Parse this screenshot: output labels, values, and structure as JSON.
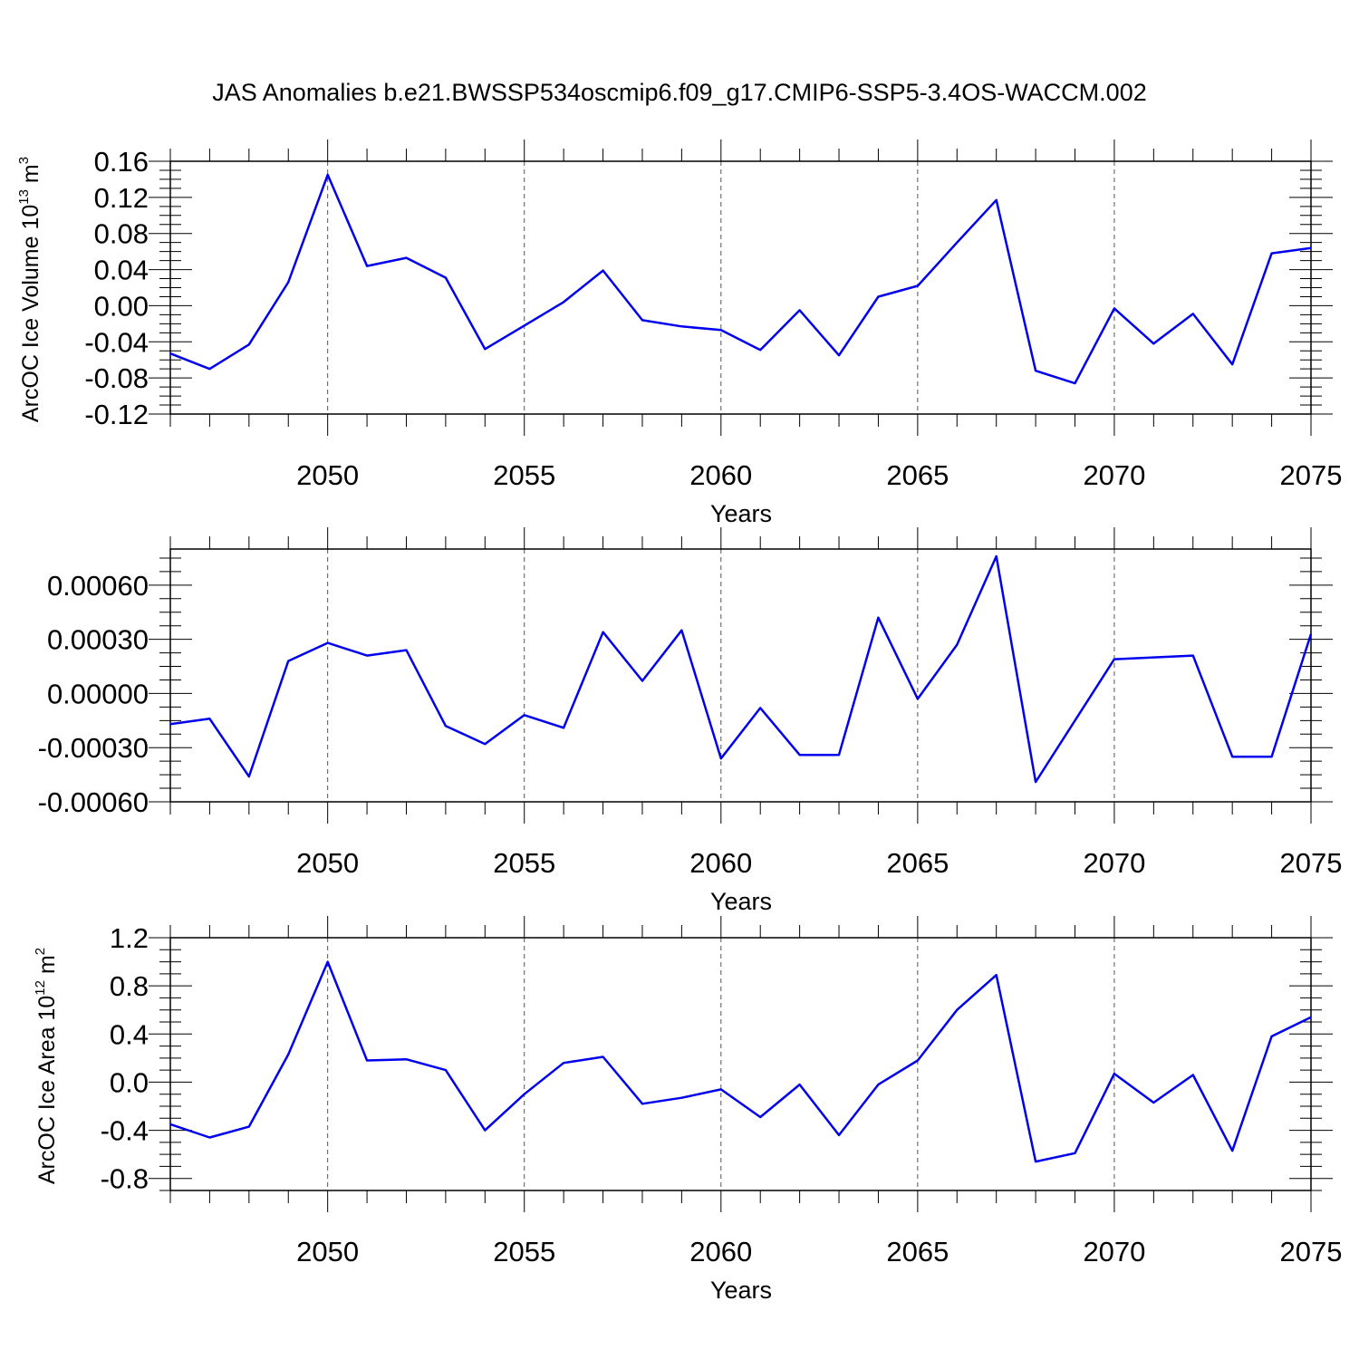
{
  "title": "JAS Anomalies b.e21.BWSSP534oscmip6.f09_g17.CMIP6-SSP5-3.4OS-WACCM.002",
  "colors": {
    "line": "#0000ee",
    "axis": "#000000",
    "grid": "#555555"
  },
  "chart_data": [
    {
      "type": "line",
      "ylabel": "ArcOC Ice Volume 10",
      "ylabel_sup": "13",
      "ylabel_unit": " m",
      "ylabel_unit_sup": "3",
      "xlabel": "Years",
      "xlim": [
        2046,
        2075
      ],
      "ylim": [
        -0.12,
        0.16
      ],
      "xticks": [
        2050,
        2055,
        2060,
        2065,
        2070,
        2075
      ],
      "xtick_labels": [
        "2050",
        "2055",
        "2060",
        "2065",
        "2070",
        "2075"
      ],
      "yticks": [
        -0.12,
        -0.08,
        -0.04,
        0.0,
        0.04,
        0.08,
        0.12,
        0.16
      ],
      "ytick_labels": [
        "-0.12",
        "-0.08",
        "-0.04",
        "0.00",
        "0.04",
        "0.08",
        "0.12",
        "0.16"
      ],
      "grid": "vertical dashed at labeled years",
      "x": [
        2046,
        2047,
        2048,
        2049,
        2050,
        2051,
        2052,
        2053,
        2054,
        2055,
        2056,
        2057,
        2058,
        2059,
        2060,
        2061,
        2062,
        2063,
        2064,
        2065,
        2066,
        2067,
        2068,
        2069,
        2070,
        2071,
        2072,
        2073,
        2074,
        2075
      ],
      "values": [
        -0.053,
        -0.07,
        -0.043,
        0.026,
        0.145,
        0.044,
        0.053,
        0.031,
        -0.048,
        -0.022,
        0.004,
        0.039,
        -0.016,
        -0.023,
        -0.027,
        -0.049,
        -0.005,
        -0.055,
        0.01,
        0.022,
        0.07,
        0.117,
        -0.072,
        -0.086,
        -0.003,
        -0.042,
        -0.009,
        -0.065,
        0.058,
        0.064
      ]
    },
    {
      "type": "line",
      "ylabel": "",
      "xlabel": "Years",
      "xlim": [
        2046,
        2075
      ],
      "ylim": [
        -0.0006,
        0.0008
      ],
      "xticks": [
        2050,
        2055,
        2060,
        2065,
        2070,
        2075
      ],
      "xtick_labels": [
        "2050",
        "2055",
        "2060",
        "2065",
        "2070",
        "2075"
      ],
      "yticks": [
        -0.0006,
        -0.0003,
        0.0,
        0.0003,
        0.0006
      ],
      "ytick_labels": [
        "-0.00060",
        "-0.00030",
        "0.00000",
        "0.00030",
        "0.00060"
      ],
      "grid": "vertical dashed at labeled years",
      "x": [
        2046,
        2047,
        2048,
        2049,
        2050,
        2051,
        2052,
        2053,
        2054,
        2055,
        2056,
        2057,
        2058,
        2059,
        2060,
        2061,
        2062,
        2063,
        2064,
        2065,
        2066,
        2067,
        2068,
        2069,
        2070,
        2071,
        2072,
        2073,
        2074,
        2075
      ],
      "values": [
        -0.00017,
        -0.00014,
        -0.00046,
        0.00018,
        0.00028,
        0.00021,
        0.00024,
        -0.00018,
        -0.00028,
        -0.00012,
        -0.00019,
        0.00034,
        7e-05,
        0.00035,
        -0.00036,
        -8e-05,
        -0.00034,
        -0.00034,
        0.00042,
        -3e-05,
        0.00027,
        0.00076,
        -0.00049,
        -0.00015,
        0.00019,
        0.0002,
        0.00021,
        -0.00035,
        -0.00035,
        0.00033
      ]
    },
    {
      "type": "line",
      "ylabel": "ArcOC Ice Area 10",
      "ylabel_sup": "12",
      "ylabel_unit": " m",
      "ylabel_unit_sup": "2",
      "xlabel": "Years",
      "xlim": [
        2046,
        2075
      ],
      "ylim": [
        -0.9,
        1.2
      ],
      "xticks": [
        2050,
        2055,
        2060,
        2065,
        2070,
        2075
      ],
      "xtick_labels": [
        "2050",
        "2055",
        "2060",
        "2065",
        "2070",
        "2075"
      ],
      "yticks": [
        -0.8,
        -0.4,
        0.0,
        0.4,
        0.8,
        1.2
      ],
      "ytick_labels": [
        "-0.8",
        "-0.4",
        "0.0",
        "0.4",
        "0.8",
        "1.2"
      ],
      "grid": "vertical dashed at labeled years",
      "x": [
        2046,
        2047,
        2048,
        2049,
        2050,
        2051,
        2052,
        2053,
        2054,
        2055,
        2056,
        2057,
        2058,
        2059,
        2060,
        2061,
        2062,
        2063,
        2064,
        2065,
        2066,
        2067,
        2068,
        2069,
        2070,
        2071,
        2072,
        2073,
        2074,
        2075
      ],
      "values": [
        -0.35,
        -0.46,
        -0.37,
        0.23,
        1.0,
        0.18,
        0.19,
        0.1,
        -0.4,
        -0.1,
        0.16,
        0.21,
        -0.18,
        -0.13,
        -0.06,
        -0.29,
        -0.02,
        -0.44,
        -0.02,
        0.18,
        0.6,
        0.89,
        -0.66,
        -0.59,
        0.07,
        -0.17,
        0.06,
        -0.57,
        0.38,
        0.54
      ]
    }
  ]
}
